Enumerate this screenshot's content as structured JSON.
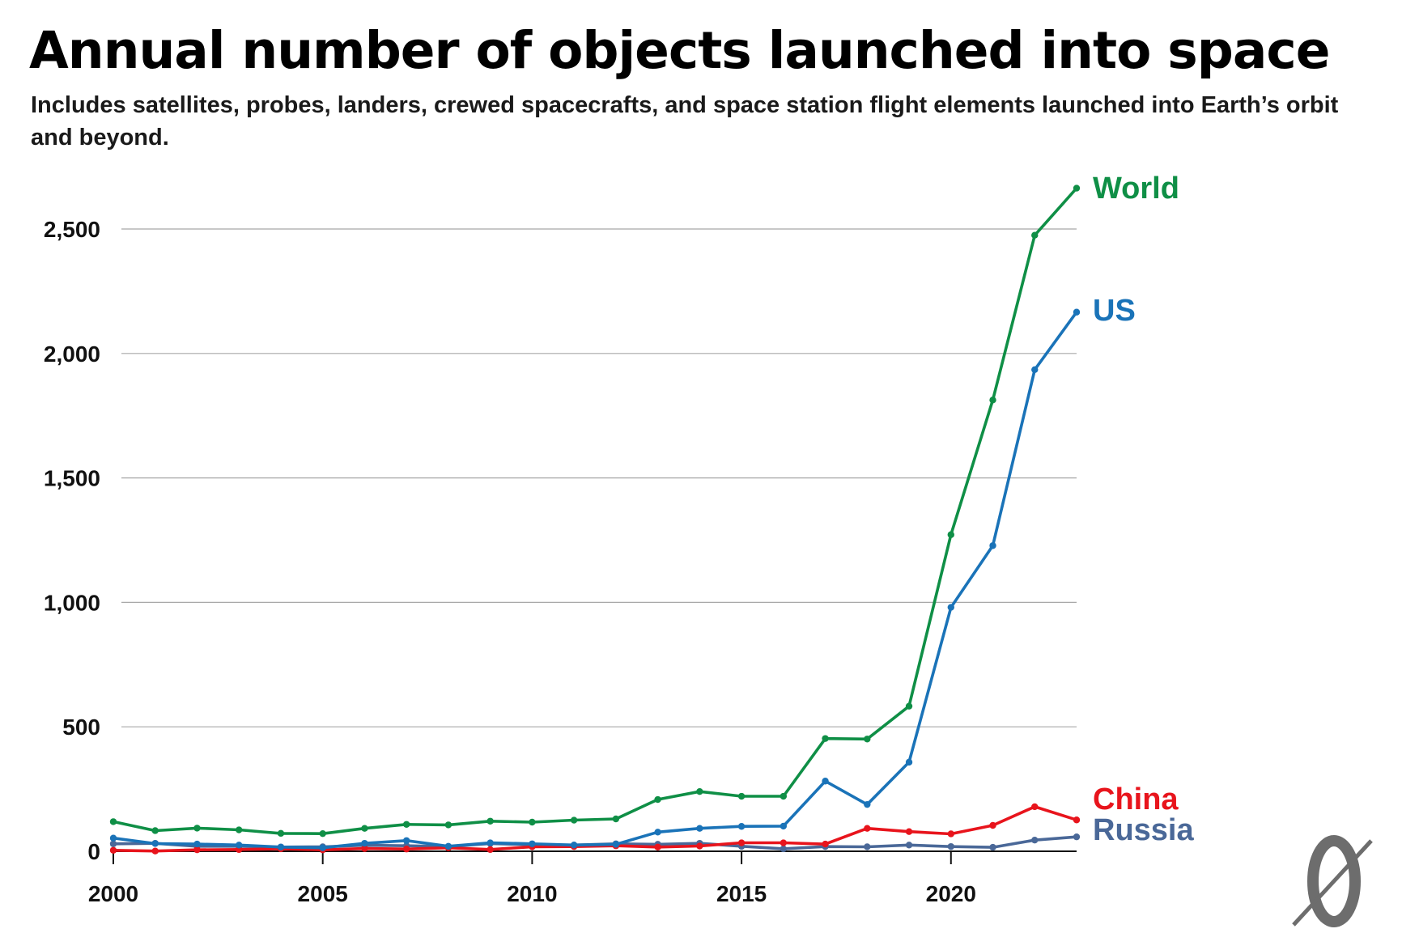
{
  "chart_data": {
    "type": "line",
    "title": "Annual number of objects launched into space",
    "subtitle": "Includes satellites, probes, landers, crewed spacecrafts, and space station flight elements launched into Earth’s orbit and beyond.",
    "xlabel": "",
    "ylabel": "",
    "xlim": [
      2000,
      2023
    ],
    "ylim": [
      0,
      2700
    ],
    "x_ticks": [
      2000,
      2005,
      2010,
      2015,
      2020
    ],
    "x_tick_labels": [
      "2000",
      "2005",
      "2010",
      "2015",
      "2020"
    ],
    "y_ticks": [
      0,
      500,
      1000,
      1500,
      2000,
      2500
    ],
    "y_tick_labels": [
      "0",
      "500",
      "1,000",
      "1,500",
      "2,000",
      "2,500"
    ],
    "grid": true,
    "legend": "direct labels at line ends",
    "x": [
      2000,
      2001,
      2002,
      2003,
      2004,
      2005,
      2006,
      2007,
      2008,
      2009,
      2010,
      2011,
      2012,
      2013,
      2014,
      2015,
      2016,
      2017,
      2018,
      2019,
      2020,
      2021,
      2022,
      2023
    ],
    "series": [
      {
        "name": "World",
        "color": "#0f8f46",
        "values": [
          119,
          83,
          93,
          86,
          72,
          71,
          92,
          108,
          106,
          121,
          117,
          125,
          130,
          208,
          240,
          221,
          221,
          453,
          451,
          583,
          1272,
          1813,
          2475,
          2664
        ]
      },
      {
        "name": "US",
        "color": "#1a73b8",
        "values": [
          53,
          31,
          29,
          25,
          17,
          14,
          32,
          43,
          20,
          34,
          30,
          25,
          28,
          77,
          92,
          100,
          101,
          282,
          188,
          358,
          980,
          1228,
          1935,
          2166
        ]
      },
      {
        "name": "China",
        "color": "#e8141c",
        "values": [
          4,
          1,
          6,
          7,
          10,
          6,
          11,
          9,
          14,
          7,
          18,
          19,
          22,
          17,
          21,
          34,
          34,
          29,
          92,
          79,
          70,
          104,
          179,
          126
        ]
      },
      {
        "name": "Russia",
        "color": "#4a6898",
        "values": [
          30,
          32,
          20,
          20,
          17,
          18,
          24,
          22,
          19,
          31,
          26,
          25,
          30,
          28,
          32,
          20,
          10,
          19,
          18,
          25,
          19,
          16,
          45,
          58
        ]
      }
    ]
  },
  "logo": {
    "name": "Our World in Data style mark",
    "glyph": "0"
  }
}
